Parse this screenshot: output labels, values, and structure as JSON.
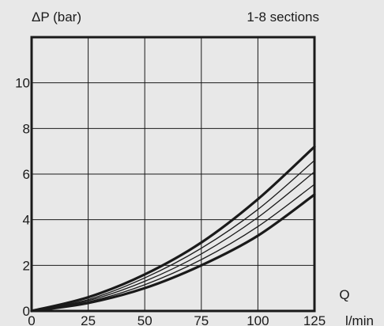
{
  "chart_data": {
    "type": "line",
    "ylabel": "ΔP (bar)",
    "annotation": "1-8 sections",
    "xlabel_symbol": "Q",
    "xlabel_unit": "l/min",
    "xlim": [
      0,
      125
    ],
    "ylim": [
      0,
      12
    ],
    "xticks": [
      0,
      25,
      50,
      75,
      100,
      125
    ],
    "yticks": [
      0,
      2,
      4,
      6,
      8,
      10
    ],
    "grid": true,
    "x": [
      0,
      25,
      50,
      75,
      100,
      125
    ],
    "series": [
      {
        "values": [
          0,
          0.6,
          1.6,
          3.0,
          4.9,
          7.2
        ],
        "weight": "bold"
      },
      {
        "values": [
          0,
          0.5,
          1.45,
          2.75,
          4.45,
          6.6
        ],
        "weight": "thin"
      },
      {
        "values": [
          0,
          0.45,
          1.3,
          2.5,
          4.1,
          6.1
        ],
        "weight": "thin"
      },
      {
        "values": [
          0,
          0.4,
          1.15,
          2.25,
          3.7,
          5.55
        ],
        "weight": "thin"
      },
      {
        "values": [
          0,
          0.35,
          1.0,
          2.0,
          3.3,
          5.1
        ],
        "weight": "bold"
      }
    ],
    "line_color": "#1a1a1a"
  }
}
